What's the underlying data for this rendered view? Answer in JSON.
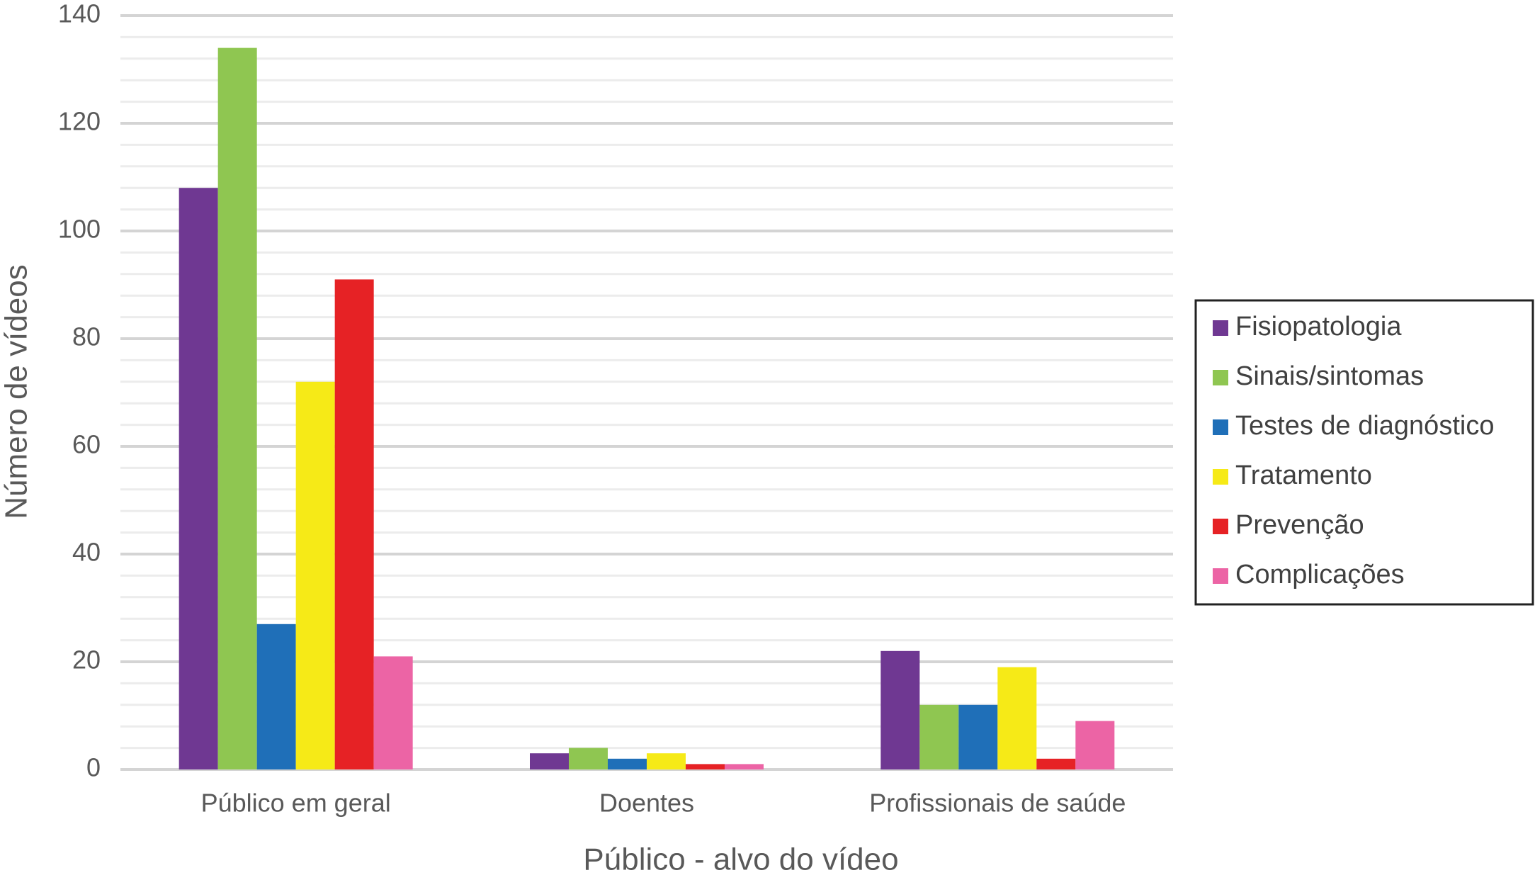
{
  "chart_data": {
    "type": "bar",
    "x_label": "Público - alvo do vídeo",
    "y_label": "Número de vídeos",
    "categories": [
      "Público em geral",
      "Doentes",
      "Profissionais de saúde"
    ],
    "series": [
      {
        "name": "Fisiopatologia",
        "color": "#6f3892",
        "values": [
          108,
          3,
          22
        ]
      },
      {
        "name": "Sinais/sintomas",
        "color": "#8fc651",
        "values": [
          134,
          4,
          12
        ]
      },
      {
        "name": "Testes de diagnóstico",
        "color": "#1f6fb8",
        "values": [
          27,
          2,
          12
        ]
      },
      {
        "name": "Tratamento",
        "color": "#f6ea17",
        "values": [
          72,
          3,
          19
        ]
      },
      {
        "name": "Prevenção",
        "color": "#e62225",
        "values": [
          91,
          1,
          2
        ]
      },
      {
        "name": "Complicações",
        "color": "#ec64a5",
        "values": [
          21,
          1,
          9
        ]
      }
    ],
    "ylim": [
      0,
      140
    ],
    "yticks": [
      0,
      20,
      40,
      60,
      80,
      100,
      120,
      140
    ],
    "minor_gridlines": [
      4,
      8,
      12,
      16,
      24,
      28,
      32,
      36,
      44,
      48,
      52,
      56,
      64,
      68,
      72,
      76,
      84,
      88,
      92,
      96,
      104,
      108,
      112,
      116,
      124,
      128,
      132,
      136
    ],
    "grid": true,
    "legend_position": "right"
  }
}
